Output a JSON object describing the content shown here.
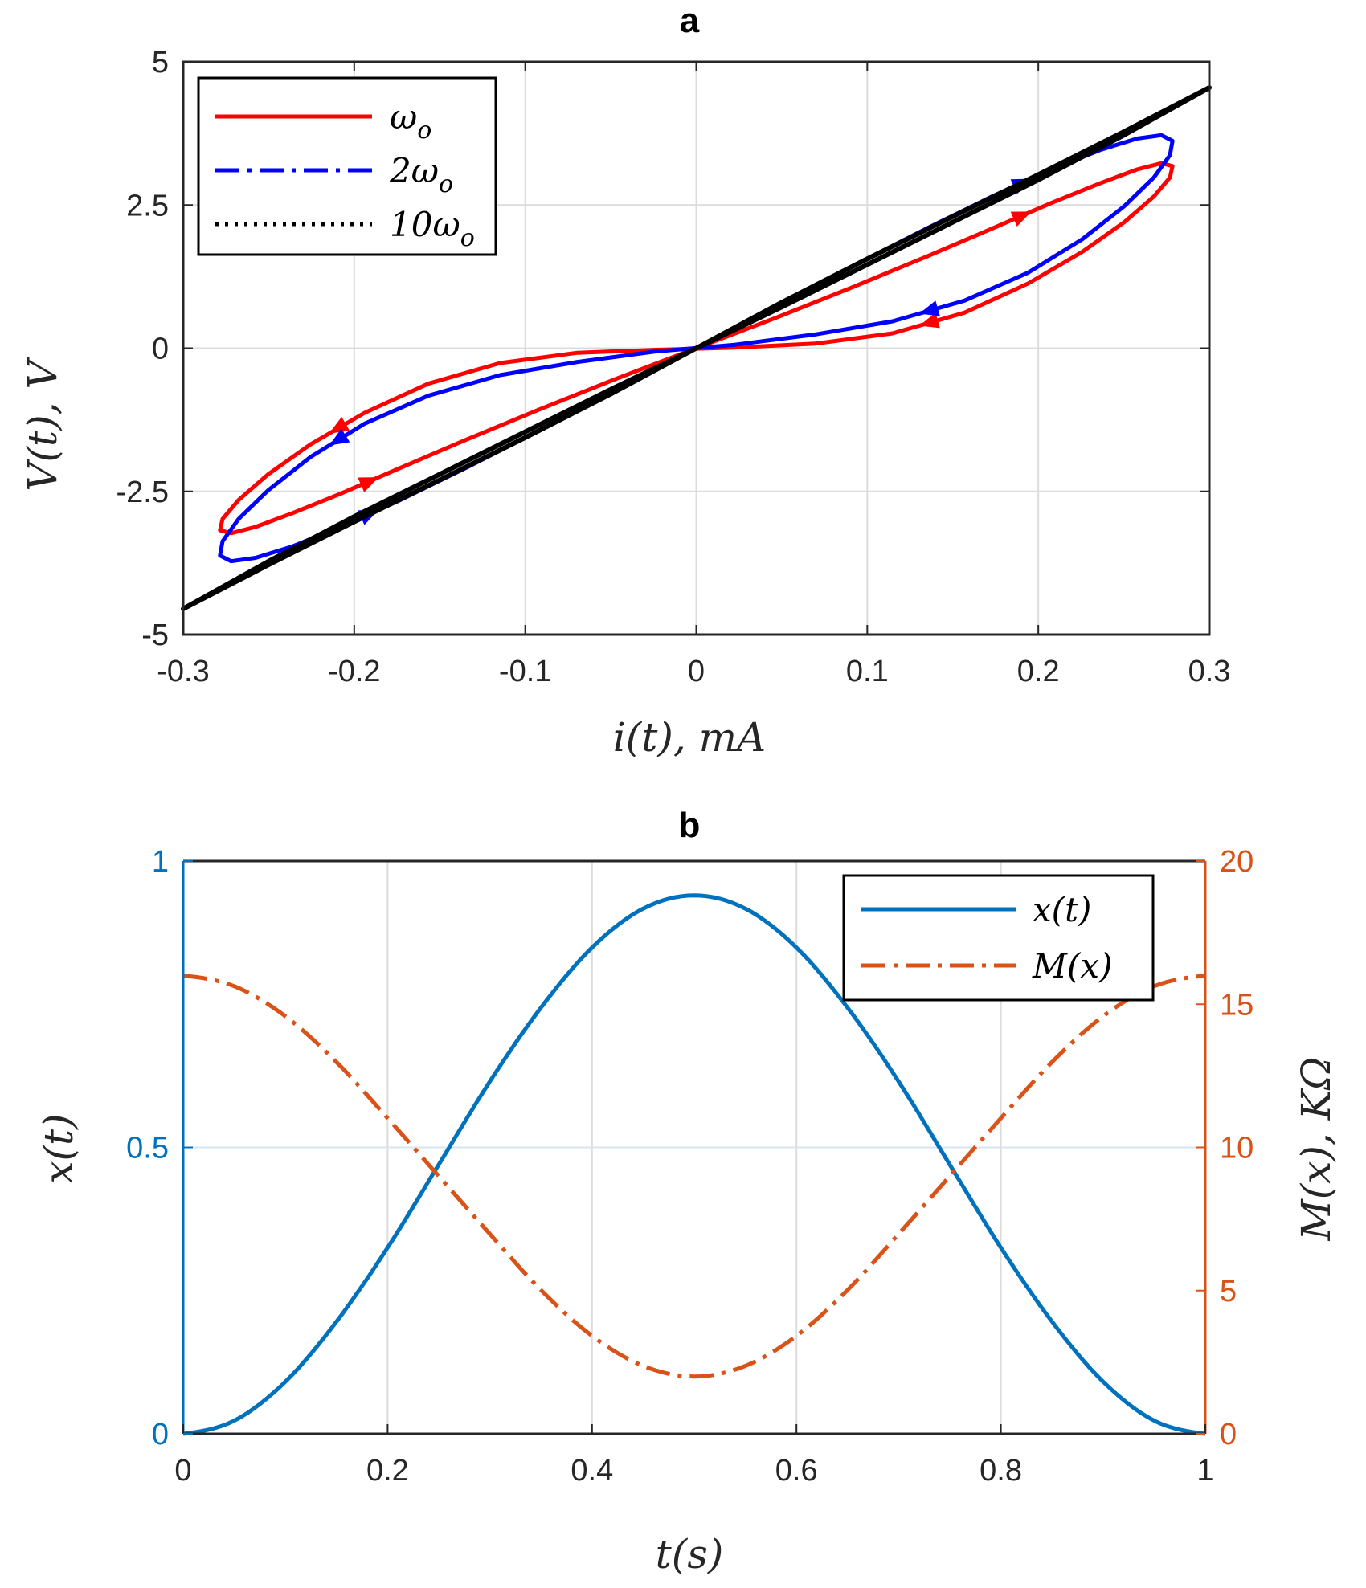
{
  "chart_data": [
    {
      "panel": "a",
      "type": "line",
      "title": "a",
      "xlabel": "i(t),  mA",
      "ylabel": "V(t),  V",
      "xlim": [
        -0.3,
        0.3
      ],
      "ylim": [
        -5,
        5
      ],
      "xticks": [
        -0.3,
        -0.2,
        -0.1,
        0,
        0.1,
        0.2,
        0.3
      ],
      "xtick_labels": [
        "-0.3",
        "-0.2",
        "-0.1",
        "0",
        "0.1",
        "0.2",
        "0.3"
      ],
      "yticks": [
        -5,
        -2.5,
        0,
        2.5,
        5
      ],
      "ytick_labels": [
        "-5",
        "-2.5",
        "0",
        "2.5",
        "5"
      ],
      "grid": true,
      "legend_position": "top-left",
      "series": [
        {
          "name": "ω_o",
          "label_main": "ω",
          "label_sub": "o",
          "label_prefix": "",
          "color": "#ff0000",
          "style": "solid",
          "amplitude_mA": 0.3,
          "x": [
            0,
            0.0465,
            0.0918,
            0.1347,
            0.1738,
            0.2079,
            0.2361,
            0.2577,
            0.272,
            0.2785,
            0.277,
            0.2676,
            0.2503,
            0.2256,
            0.1941,
            0.1568,
            0.1148,
            0.0695,
            0.0225,
            -0.0245,
            -0.0695,
            -0.1148,
            -0.1568,
            -0.1941,
            -0.2256,
            -0.2503,
            -0.2676,
            -0.277,
            -0.2785,
            -0.272,
            -0.2577,
            -0.2361,
            -0.2079,
            -0.1738,
            -0.1347,
            -0.0918,
            -0.0465,
            0
          ],
          "y": [
            0,
            0.53,
            1.07,
            1.6,
            2.1,
            2.54,
            2.88,
            3.12,
            3.23,
            3.18,
            2.98,
            2.65,
            2.2,
            1.68,
            1.13,
            0.62,
            0.26,
            0.08,
            0.01,
            -0.03,
            -0.08,
            -0.26,
            -0.62,
            -1.13,
            -1.68,
            -2.2,
            -2.65,
            -2.98,
            -3.18,
            -3.23,
            -3.12,
            -2.88,
            -2.54,
            -2.1,
            -1.6,
            -1.07,
            -0.53,
            0
          ]
        },
        {
          "name": "2ω_o",
          "label_main": "ω",
          "label_sub": "o",
          "label_prefix": "2",
          "color": "#0000ff",
          "style": "dashdot",
          "amplitude_mA": 0.3,
          "x": [
            0,
            0.0465,
            0.0918,
            0.1347,
            0.1738,
            0.2079,
            0.2361,
            0.2577,
            0.272,
            0.2785,
            0.277,
            0.2676,
            0.2503,
            0.2256,
            0.1941,
            0.1568,
            0.1148,
            0.0695,
            0.0225,
            -0.0245,
            -0.0695,
            -0.1148,
            -0.1568,
            -0.1941,
            -0.2256,
            -0.2503,
            -0.2676,
            -0.277,
            -0.2785,
            -0.272,
            -0.2577,
            -0.2361,
            -0.2079,
            -0.1738,
            -0.1347,
            -0.0918,
            -0.0465,
            0
          ],
          "y": [
            0,
            0.73,
            1.44,
            2.09,
            2.66,
            3.12,
            3.46,
            3.66,
            3.72,
            3.62,
            3.37,
            2.98,
            2.48,
            1.9,
            1.32,
            0.83,
            0.47,
            0.24,
            0.06,
            -0.06,
            -0.24,
            -0.47,
            -0.83,
            -1.32,
            -1.9,
            -2.48,
            -2.98,
            -3.37,
            -3.62,
            -3.72,
            -3.66,
            -3.46,
            -3.12,
            -2.66,
            -2.09,
            -1.44,
            -0.73,
            0
          ]
        },
        {
          "name": "10ω_o",
          "label_main": "ω",
          "label_sub": "o",
          "label_prefix": "10",
          "color": "#000000",
          "style": "dotted",
          "amplitude_mA": 0.3,
          "x": [
            0,
            0.05,
            0.1,
            0.15,
            0.2,
            0.25,
            0.3,
            0.25,
            0.2,
            0.15,
            0.1,
            0.05,
            0,
            -0.05,
            -0.1,
            -0.15,
            -0.2,
            -0.25,
            -0.3,
            -0.25,
            -0.2,
            -0.15,
            -0.1,
            -0.05,
            0
          ],
          "y": [
            0,
            0.8,
            1.56,
            2.3,
            3.03,
            3.78,
            4.55,
            3.72,
            2.94,
            2.2,
            1.46,
            0.72,
            0,
            -0.8,
            -1.56,
            -2.3,
            -3.03,
            -3.78,
            -4.55,
            -3.72,
            -2.94,
            -2.2,
            -1.46,
            -0.72,
            0
          ]
        }
      ]
    },
    {
      "panel": "b",
      "type": "line",
      "title": "b",
      "xlabel": "t(s)",
      "ylabel_left": "x(t)",
      "ylabel_right": "M(x),  KΩ",
      "xlim": [
        0,
        1
      ],
      "ylim_left": [
        0,
        1
      ],
      "ylim_right": [
        0,
        20
      ],
      "xticks": [
        0,
        0.2,
        0.4,
        0.6,
        0.8,
        1
      ],
      "xtick_labels": [
        "0",
        "0.2",
        "0.4",
        "0.6",
        "0.8",
        "1"
      ],
      "yticks_left": [
        0,
        0.5,
        1
      ],
      "ytick_labels_left": [
        "0",
        "0.5",
        "1"
      ],
      "yticks_right": [
        0,
        5,
        10,
        15,
        20
      ],
      "ytick_labels_right": [
        "0",
        "5",
        "10",
        "15",
        "20"
      ],
      "grid": true,
      "legend_position": "top-right",
      "left_color": "#0072bd",
      "right_color": "#d95319",
      "series": [
        {
          "name": "x(t)",
          "axis": "left",
          "color": "#0072bd",
          "style": "solid",
          "x": [
            0,
            0.05,
            0.1,
            0.15,
            0.2,
            0.25,
            0.3,
            0.35,
            0.4,
            0.45,
            0.5,
            0.55,
            0.6,
            0.65,
            0.7,
            0.75,
            0.8,
            0.85,
            0.9,
            0.95,
            1
          ],
          "y": [
            0,
            0.023,
            0.091,
            0.196,
            0.325,
            0.47,
            0.615,
            0.744,
            0.849,
            0.917,
            0.94,
            0.917,
            0.849,
            0.744,
            0.615,
            0.47,
            0.325,
            0.196,
            0.091,
            0.023,
            0
          ]
        },
        {
          "name": "M(x)",
          "axis": "right",
          "color": "#d95319",
          "style": "dashdot",
          "x": [
            0,
            0.05,
            0.1,
            0.15,
            0.2,
            0.25,
            0.3,
            0.35,
            0.4,
            0.45,
            0.5,
            0.55,
            0.6,
            0.65,
            0.7,
            0.75,
            0.8,
            0.85,
            0.9,
            0.95,
            1
          ],
          "y": [
            16,
            15.63,
            14.58,
            12.98,
            11.02,
            9.0,
            6.98,
            5.02,
            3.42,
            2.37,
            2.0,
            2.37,
            3.42,
            5.02,
            6.98,
            9.0,
            11.02,
            12.98,
            14.58,
            15.63,
            16
          ]
        }
      ]
    }
  ]
}
